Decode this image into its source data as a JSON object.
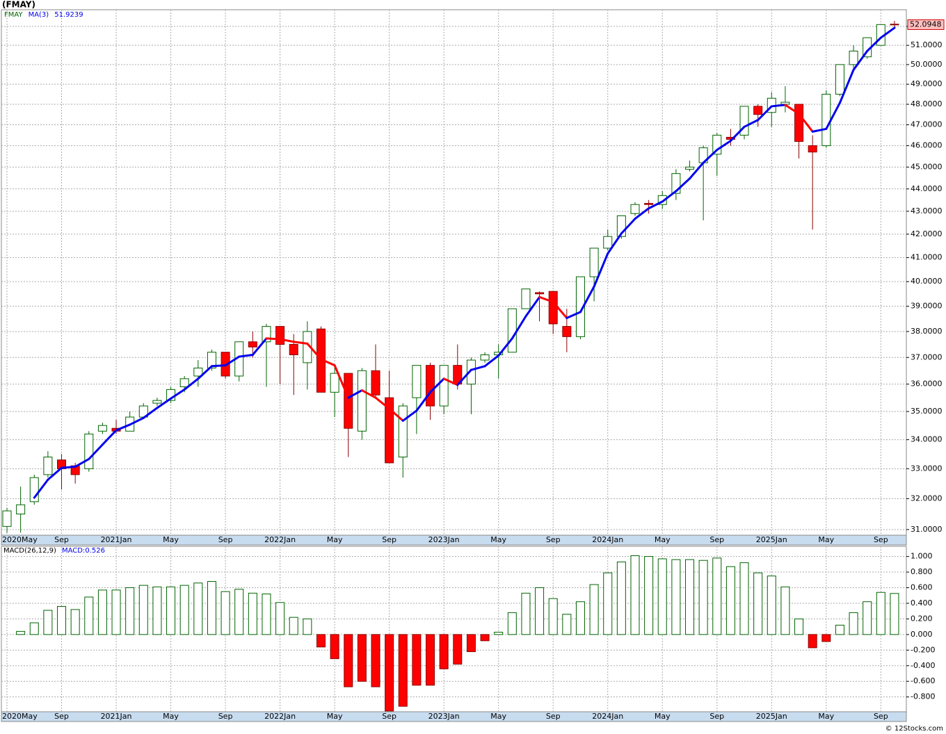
{
  "chart_data": [
    {
      "type": "candlestick",
      "title": "(FMAY)",
      "source": "© 12Stocks.com",
      "log_scale": true,
      "grid": true,
      "categories": [
        "2020May",
        null,
        null,
        null,
        "Sep",
        null,
        null,
        null,
        "2021Jan",
        null,
        null,
        null,
        "May",
        null,
        null,
        null,
        "Sep",
        null,
        null,
        null,
        "2022Jan",
        null,
        null,
        null,
        "May",
        null,
        null,
        null,
        "Sep",
        null,
        null,
        null,
        "2023Jan",
        null,
        null,
        null,
        "May",
        null,
        null,
        null,
        "Sep",
        null,
        null,
        null,
        "2024Jan",
        null,
        null,
        null,
        "May",
        null,
        null,
        null,
        "Sep",
        null,
        null,
        null,
        "2025Jan",
        null,
        null,
        null,
        "May",
        null,
        null,
        null,
        "Sep",
        null
      ],
      "series": [
        {
          "name": "FMAY",
          "color": "#006400",
          "up_color": "#ffffff",
          "down_color": "#ff0000",
          "open": [
            31.1,
            31.5,
            31.9,
            32.8,
            33.3,
            33.1,
            33.0,
            34.3,
            34.4,
            34.3,
            34.8,
            35.3,
            35.4,
            35.9,
            36.3,
            36.6,
            37.2,
            36.3,
            37.6,
            37.6,
            38.2,
            37.5,
            36.8,
            38.1,
            35.7,
            36.4,
            34.3,
            36.5,
            35.5,
            33.4,
            35.5,
            36.7,
            35.2,
            36.7,
            36.0,
            36.9,
            37.1,
            37.2,
            38.9,
            39.55,
            39.6,
            38.2,
            37.8,
            40.2,
            41.4,
            41.9,
            42.9,
            43.35,
            43.3,
            43.8,
            44.9,
            45.2,
            45.6,
            46.4,
            46.5,
            47.9,
            47.6,
            48.0,
            48.0,
            46.0,
            46.0,
            48.5,
            50.0,
            50.4,
            51.0,
            52.12
          ],
          "high": [
            31.7,
            32.4,
            32.8,
            33.6,
            33.5,
            33.2,
            34.3,
            34.6,
            34.7,
            35.0,
            35.3,
            35.5,
            35.9,
            36.3,
            36.9,
            37.3,
            37.2,
            37.6,
            38.0,
            38.3,
            38.2,
            37.9,
            38.4,
            38.2,
            36.7,
            36.4,
            36.6,
            37.5,
            36.5,
            35.3,
            36.7,
            36.8,
            36.7,
            37.5,
            37.0,
            37.2,
            37.5,
            38.9,
            39.7,
            39.6,
            39.6,
            38.9,
            40.2,
            41.4,
            42.2,
            42.8,
            43.4,
            43.5,
            43.9,
            44.9,
            45.3,
            46.0,
            46.6,
            46.8,
            47.9,
            48.0,
            48.6,
            48.9,
            48.0,
            46.5,
            48.7,
            50.0,
            51.0,
            51.4,
            52.1,
            52.3
          ],
          "low": [
            30.9,
            30.9,
            31.8,
            32.7,
            32.3,
            32.5,
            32.9,
            34.2,
            34.2,
            34.3,
            34.8,
            35.2,
            35.3,
            35.7,
            35.9,
            36.5,
            36.2,
            36.1,
            37.0,
            35.9,
            36.0,
            35.6,
            35.8,
            35.7,
            34.8,
            33.4,
            34.0,
            35.5,
            33.2,
            32.7,
            34.2,
            34.7,
            34.9,
            35.8,
            34.9,
            36.8,
            36.2,
            37.2,
            38.9,
            38.4,
            37.9,
            37.2,
            37.7,
            39.2,
            41.3,
            41.8,
            42.8,
            42.9,
            43.1,
            43.5,
            44.8,
            42.6,
            44.6,
            46.0,
            46.3,
            46.9,
            46.9,
            47.6,
            45.4,
            42.2,
            45.9,
            48.4,
            49.7,
            50.3,
            51.0,
            51.9
          ],
          "close": [
            31.6,
            31.8,
            32.7,
            33.4,
            33.0,
            32.8,
            34.2,
            34.5,
            34.3,
            34.8,
            35.2,
            35.4,
            35.8,
            36.2,
            36.6,
            37.2,
            36.3,
            37.6,
            37.4,
            38.2,
            37.5,
            37.1,
            38.0,
            35.7,
            36.4,
            34.4,
            36.5,
            35.6,
            33.2,
            35.2,
            36.7,
            35.2,
            36.7,
            36.0,
            36.9,
            37.1,
            37.2,
            38.9,
            39.7,
            39.5,
            38.3,
            37.8,
            40.2,
            41.4,
            41.9,
            42.8,
            43.3,
            43.3,
            43.7,
            44.7,
            45.0,
            45.9,
            46.5,
            46.3,
            47.9,
            47.5,
            48.3,
            48.1,
            46.2,
            45.7,
            48.5,
            50.0,
            50.7,
            51.4,
            52.1,
            52.0948
          ]
        },
        {
          "name": "MA(3)",
          "color": "#0000ee",
          "falling_color": "#ff0000",
          "values": [
            null,
            null,
            32.03,
            32.63,
            33.03,
            33.07,
            33.33,
            33.83,
            34.33,
            34.53,
            34.77,
            35.13,
            35.47,
            35.8,
            36.2,
            36.67,
            36.7,
            37.03,
            37.1,
            37.73,
            37.7,
            37.6,
            37.53,
            36.93,
            36.7,
            35.5,
            35.77,
            35.5,
            35.1,
            34.67,
            35.03,
            35.7,
            36.2,
            35.97,
            36.53,
            36.67,
            37.07,
            37.73,
            38.6,
            39.37,
            39.17,
            38.53,
            38.77,
            39.8,
            41.17,
            42.03,
            42.67,
            43.13,
            43.43,
            43.9,
            44.47,
            45.2,
            45.8,
            46.23,
            46.9,
            47.23,
            47.9,
            47.97,
            47.53,
            46.67,
            46.8,
            48.07,
            49.73,
            50.7,
            51.4,
            51.9239
          ]
        }
      ],
      "ylim": [
        30.82,
        52.9
      ],
      "yticks": [
        {
          "value": 31,
          "label": "31.0000"
        },
        {
          "value": 32,
          "label": "32.0000"
        },
        {
          "value": 33,
          "label": "33.0000"
        },
        {
          "value": 34,
          "label": "34.0000"
        },
        {
          "value": 35,
          "label": "35.0000"
        },
        {
          "value": 36,
          "label": "36.0000"
        },
        {
          "value": 37,
          "label": "37.0000"
        },
        {
          "value": 38,
          "label": "38.0000"
        },
        {
          "value": 39,
          "label": "39.0000"
        },
        {
          "value": 40,
          "label": "40.0000"
        },
        {
          "value": 41,
          "label": "41.0000"
        },
        {
          "value": 42,
          "label": "42.0000"
        },
        {
          "value": 43,
          "label": "43.0000"
        },
        {
          "value": 44,
          "label": "44.0000"
        },
        {
          "value": 45,
          "label": "45.0000"
        },
        {
          "value": 46,
          "label": "46.0000"
        },
        {
          "value": 47,
          "label": "47.0000"
        },
        {
          "value": 48,
          "label": "48.0000"
        },
        {
          "value": 49,
          "label": "49.0000"
        },
        {
          "value": 50,
          "label": "50.0000"
        },
        {
          "value": 51,
          "label": "51.0000"
        },
        {
          "value": 52,
          "label": "52.0000"
        }
      ]
    },
    {
      "type": "bar",
      "indicator": "MACD(26,12,9)",
      "grid": true,
      "series": [
        {
          "name": "MACD:",
          "color": "#0000ee",
          "positive_color": "#ffffff",
          "positive_stroke": "#006400",
          "negative_color": "#ff0000",
          "values": [
            null,
            0.04,
            0.15,
            0.31,
            0.36,
            0.32,
            0.48,
            0.57,
            0.57,
            0.6,
            0.63,
            0.61,
            0.61,
            0.63,
            0.66,
            0.68,
            0.55,
            0.58,
            0.53,
            0.52,
            0.41,
            0.22,
            0.2,
            -0.16,
            -0.31,
            -0.67,
            -0.6,
            -0.67,
            -0.98,
            -0.92,
            -0.65,
            -0.65,
            -0.44,
            -0.38,
            -0.22,
            -0.08,
            0.03,
            0.28,
            0.53,
            0.6,
            0.46,
            0.26,
            0.42,
            0.64,
            0.79,
            0.93,
            1.01,
            1.0,
            0.97,
            0.96,
            0.96,
            0.95,
            0.98,
            0.87,
            0.92,
            0.79,
            0.75,
            0.61,
            0.2,
            -0.17,
            -0.09,
            0.12,
            0.28,
            0.42,
            0.54,
            0.526
          ]
        }
      ],
      "ylim": [
        -0.99,
        1.13
      ],
      "yticks": [
        {
          "value": 1,
          "label": "1.000"
        },
        {
          "value": 0.8,
          "label": "0.800"
        },
        {
          "value": 0.6,
          "label": "0.600"
        },
        {
          "value": 0.4,
          "label": "0.400"
        },
        {
          "value": 0.2,
          "label": "0.200"
        },
        {
          "value": 0,
          "label": "0.000"
        },
        {
          "value": -0.2,
          "label": "-0.200"
        },
        {
          "value": -0.4,
          "label": "-0.400"
        },
        {
          "value": -0.6,
          "label": "-0.600"
        },
        {
          "value": -0.8,
          "label": "-0.800"
        }
      ]
    }
  ]
}
